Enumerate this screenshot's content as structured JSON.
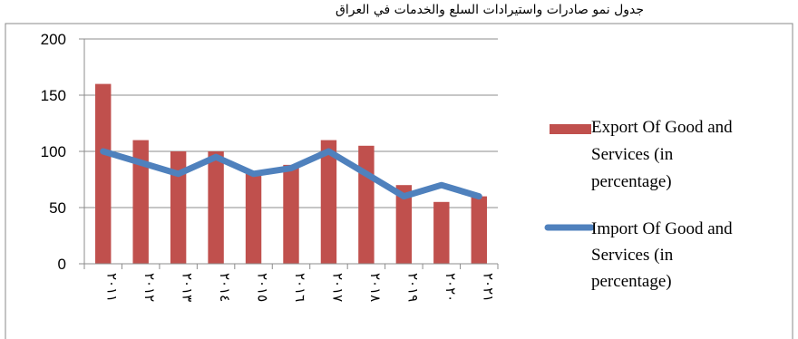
{
  "chart_data": {
    "type": "bar",
    "title": "",
    "title_fragment": "جدول نمو صادرات واستيرادات السلع والخدمات في العراق",
    "xlabel": "",
    "ylabel": "",
    "categories": [
      "٢٠١١",
      "٢٠١٢",
      "٢٠١٣",
      "٢٠١٤",
      "٢٠١٥",
      "٢٠١٦",
      "٢٠١٧",
      "٢٠١٨",
      "٢٠١٩",
      "٢٠٢٠",
      "٢٠٢١"
    ],
    "ylim": [
      0,
      200
    ],
    "yticks": [
      0,
      50,
      100,
      150,
      200
    ],
    "grid": true,
    "legend_position": "right",
    "series": [
      {
        "name": "Export Of Good and Services  (in percentage)",
        "legend_lines": [
          "Export Of Good and",
          "Services  (in",
          "percentage)"
        ],
        "type": "bar",
        "color": "#C0504D",
        "values": [
          160,
          110,
          100,
          100,
          80,
          88,
          110,
          105,
          70,
          55,
          60
        ]
      },
      {
        "name": "Import Of Good and Services  (in percentage)",
        "legend_lines": [
          "Import Of Good and",
          "Services  (in",
          "percentage)"
        ],
        "type": "line",
        "color": "#4F81BD",
        "values": [
          100,
          90,
          80,
          95,
          80,
          85,
          100,
          80,
          60,
          70,
          60
        ]
      }
    ]
  }
}
